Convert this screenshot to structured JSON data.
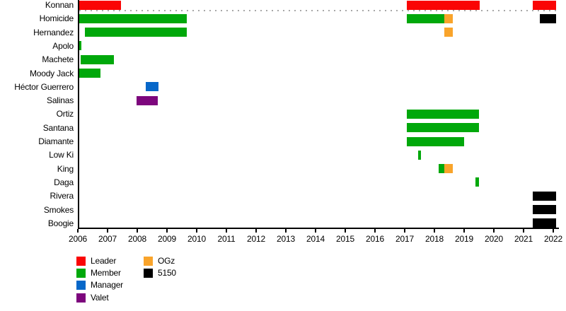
{
  "chart_data": {
    "type": "bar",
    "subtype": "membership-timeline-gantt",
    "xlabel": "",
    "ylabel": "",
    "grid": "off",
    "legend_position": "bottom-left",
    "x_axis": {
      "min": 2006,
      "max": 2022.15,
      "tick_years": [
        2006,
        2007,
        2008,
        2009,
        2010,
        2011,
        2012,
        2013,
        2014,
        2015,
        2016,
        2017,
        2018,
        2019,
        2020,
        2021,
        2022
      ]
    },
    "roles": {
      "leader": {
        "label": "Leader",
        "color": "#FA0505"
      },
      "member": {
        "label": "Member",
        "color": "#00A80B"
      },
      "manager": {
        "label": "Manager",
        "color": "#0667C9"
      },
      "valet": {
        "label": "Valet",
        "color": "#7D067D"
      },
      "ogz": {
        "label": "OGz",
        "color": "#F9A42B"
      },
      "g5150": {
        "label": "5150",
        "color": "#000000"
      }
    },
    "legend_order": [
      "leader",
      "member",
      "manager",
      "valet",
      "ogz",
      "g5150"
    ],
    "rows": [
      {
        "label": "Konnan",
        "bars": [
          {
            "start": 2006.0,
            "end": 2007.45,
            "role": "leader"
          },
          {
            "start": 2017.07,
            "end": 2019.52,
            "role": "leader"
          },
          {
            "start": 2021.31,
            "end": 2022.1,
            "role": "leader"
          }
        ]
      },
      {
        "label": "Homicide",
        "bars": [
          {
            "start": 2006.0,
            "end": 2009.67,
            "role": "member"
          },
          {
            "start": 2017.07,
            "end": 2018.33,
            "role": "member"
          },
          {
            "start": 2018.33,
            "end": 2018.62,
            "role": "ogz"
          },
          {
            "start": 2021.55,
            "end": 2022.1,
            "role": "g5150"
          }
        ]
      },
      {
        "label": "Hernandez",
        "bars": [
          {
            "start": 2006.24,
            "end": 2009.67,
            "role": "member"
          },
          {
            "start": 2018.33,
            "end": 2018.62,
            "role": "ogz"
          }
        ]
      },
      {
        "label": "Apolo",
        "bars": [
          {
            "start": 2006.0,
            "end": 2006.12,
            "role": "member"
          }
        ]
      },
      {
        "label": "Machete",
        "bars": [
          {
            "start": 2006.1,
            "end": 2007.21,
            "role": "member"
          }
        ]
      },
      {
        "label": "Moody Jack",
        "bars": [
          {
            "start": 2006.05,
            "end": 2006.76,
            "role": "member"
          }
        ]
      },
      {
        "label": "Héctor Guerrero",
        "bars": [
          {
            "start": 2008.29,
            "end": 2008.71,
            "role": "manager"
          }
        ]
      },
      {
        "label": "Salinas",
        "bars": [
          {
            "start": 2007.98,
            "end": 2008.69,
            "role": "valet"
          }
        ]
      },
      {
        "label": "Ortiz",
        "bars": [
          {
            "start": 2017.07,
            "end": 2019.5,
            "role": "member"
          }
        ]
      },
      {
        "label": "Santana",
        "bars": [
          {
            "start": 2017.07,
            "end": 2019.5,
            "role": "member"
          }
        ]
      },
      {
        "label": "Diamante",
        "bars": [
          {
            "start": 2017.07,
            "end": 2019.0,
            "role": "member"
          }
        ]
      },
      {
        "label": "Low Ki",
        "bars": [
          {
            "start": 2017.45,
            "end": 2017.55,
            "role": "member"
          }
        ]
      },
      {
        "label": "King",
        "bars": [
          {
            "start": 2018.14,
            "end": 2018.33,
            "role": "member"
          },
          {
            "start": 2018.33,
            "end": 2018.62,
            "role": "ogz"
          }
        ]
      },
      {
        "label": "Daga",
        "bars": [
          {
            "start": 2019.38,
            "end": 2019.5,
            "role": "member"
          }
        ]
      },
      {
        "label": "Rivera",
        "bars": [
          {
            "start": 2021.31,
            "end": 2022.1,
            "role": "g5150"
          }
        ]
      },
      {
        "label": "Smokes",
        "bars": [
          {
            "start": 2021.31,
            "end": 2022.1,
            "role": "g5150"
          }
        ]
      },
      {
        "label": "Boogie",
        "bars": [
          {
            "start": 2021.31,
            "end": 2022.1,
            "role": "g5150"
          }
        ]
      }
    ]
  }
}
